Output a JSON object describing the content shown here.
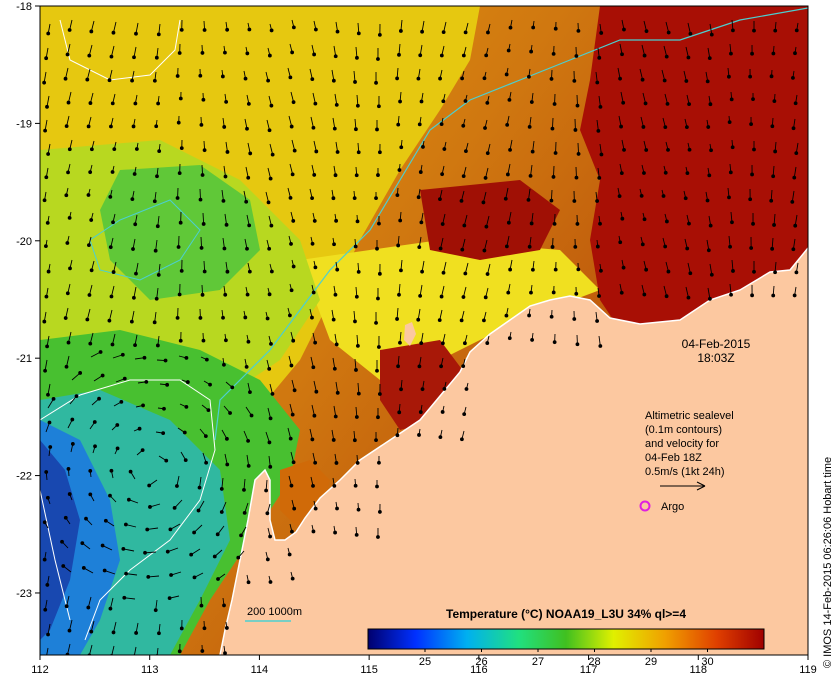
{
  "map": {
    "date_label": "04-Feb-2015",
    "time_label": "18:03Z",
    "credit": "© IMOS 14-Feb-2015 06:26:06 Hobart time",
    "lon_ticks": [
      "112",
      "113",
      "114",
      "115",
      "116",
      "117",
      "118",
      "119"
    ],
    "lat_ticks": [
      "-18",
      "-19",
      "-20",
      "-21",
      "-22",
      "-23"
    ],
    "info_lines": [
      "Altimetric sealevel",
      "(0.1m contours)",
      "and velocity for",
      "04-Feb 18Z",
      "0.5m/s (1kt 24h)"
    ],
    "argo_label": "Argo",
    "bathy_label": "200  1000m",
    "colorbar": {
      "title": "Temperature (°C) NOAA19_L3U 34% ql>=4",
      "ticks": [
        "25",
        "26",
        "27",
        "28",
        "29",
        "30"
      ]
    },
    "colors": {
      "land": "#fcc8a0",
      "warm": "#a80f05",
      "cool": "#1e5ad2",
      "contour_cyan": "#4ccfd0",
      "argo": "#e020e0"
    }
  }
}
